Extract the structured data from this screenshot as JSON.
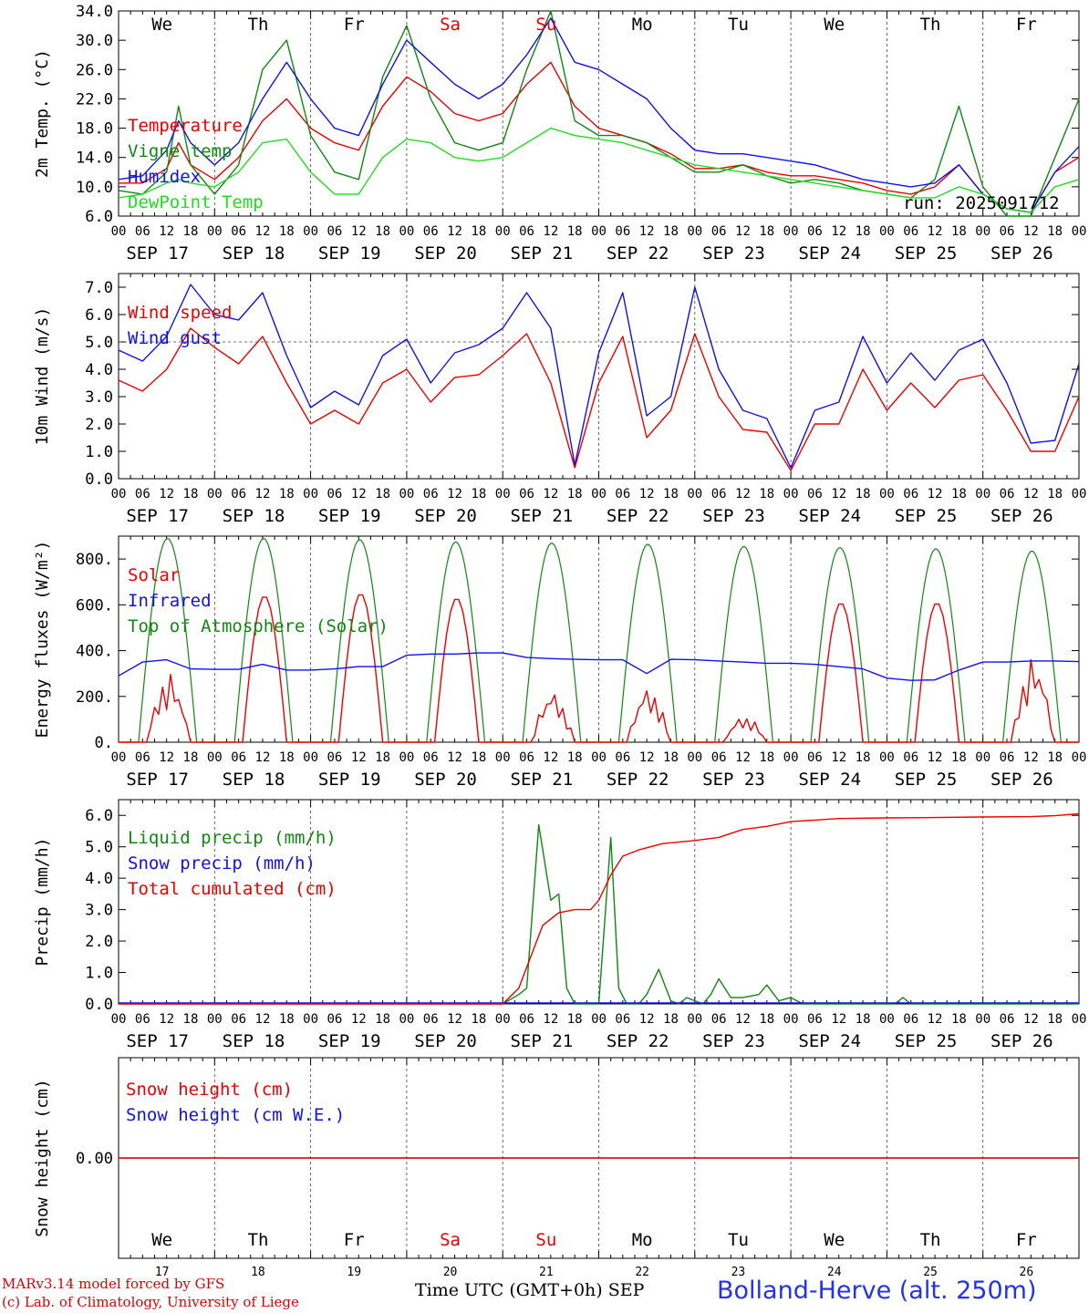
{
  "colors": {
    "red": "#ee0000",
    "green": "#118811",
    "blue": "#1111ee",
    "lime": "#22dd22",
    "black": "#000000",
    "grey": "#444444"
  },
  "day_names": [
    "We",
    "Th",
    "Fr",
    "Sa",
    "Su",
    "Mo",
    "Tu",
    "We",
    "Th",
    "Fr"
  ],
  "weekend_days": [
    3,
    4
  ],
  "date_labels": [
    "SEP 17",
    "SEP 18",
    "SEP 19",
    "SEP 20",
    "SEP 21",
    "SEP 22",
    "SEP 23",
    "SEP 24",
    "SEP 25",
    "SEP 26"
  ],
  "hour_labels": [
    "00",
    "06",
    "12",
    "18"
  ],
  "bottom_day_numbers": [
    "17",
    "18",
    "19",
    "20",
    "21",
    "22",
    "23",
    "24",
    "25",
    "26"
  ],
  "footer": {
    "model": "MARv3.14 model forced by GFS",
    "lab": "(c) Lab. of Climatology, University of Liege",
    "time_axis": "Time UTC (GMT+0h) SEP",
    "station": "Bolland-Herve (alt. 250m)"
  },
  "chart_data": [
    {
      "type": "line",
      "ylabel": "2m Temp. (°C)",
      "ylim": [
        6,
        34
      ],
      "yticks": [
        "6.0",
        "10.0",
        "14.0",
        "18.0",
        "22.0",
        "26.0",
        "30.0",
        "34.0"
      ],
      "annotation": "run: 2025091712",
      "series": [
        {
          "name": "Temperature",
          "color": "red",
          "x": [
            0,
            6,
            12,
            15,
            18,
            24,
            30,
            36,
            42,
            48,
            54,
            60,
            66,
            72,
            78,
            84,
            90,
            96,
            102,
            108,
            114,
            120,
            126,
            132,
            138,
            144,
            150,
            156,
            162,
            168,
            174,
            180,
            186,
            192,
            198,
            204,
            210,
            216,
            222,
            228,
            234,
            240
          ],
          "values": [
            10.5,
            10.5,
            12.5,
            16,
            13,
            11,
            14,
            19,
            22,
            18,
            16,
            15,
            21,
            25,
            23,
            20,
            19,
            20,
            24,
            27,
            21,
            18,
            17,
            16,
            14.5,
            12.5,
            12.5,
            13,
            12,
            11.5,
            11.5,
            11,
            10.5,
            9.5,
            9,
            10,
            13,
            9,
            7,
            6.5,
            12,
            14
          ]
        },
        {
          "name": "Vigne temp",
          "color": "green",
          "x": [
            0,
            6,
            12,
            15,
            18,
            24,
            30,
            36,
            42,
            48,
            54,
            60,
            66,
            72,
            78,
            84,
            90,
            96,
            102,
            108,
            114,
            120,
            126,
            132,
            138,
            144,
            150,
            156,
            162,
            168,
            174,
            180,
            186,
            192,
            198,
            204,
            210,
            216,
            222,
            228,
            234,
            240
          ],
          "values": [
            9.5,
            9,
            12,
            21,
            13,
            9,
            13,
            26,
            30,
            17,
            12,
            11,
            25,
            32,
            22,
            16,
            15,
            16,
            26,
            34,
            19,
            17,
            17,
            16,
            14,
            12,
            12,
            13,
            11.5,
            10.5,
            11,
            10.5,
            9.5,
            9,
            8.5,
            11,
            21,
            10,
            6,
            6,
            14,
            22
          ]
        },
        {
          "name": "Humidex",
          "color": "blue",
          "x": [
            0,
            6,
            12,
            15,
            18,
            24,
            30,
            36,
            42,
            48,
            54,
            60,
            66,
            72,
            78,
            84,
            90,
            96,
            102,
            108,
            114,
            120,
            126,
            132,
            138,
            144,
            150,
            156,
            162,
            168,
            174,
            180,
            186,
            192,
            198,
            204,
            210,
            216,
            222,
            228,
            234,
            240
          ],
          "values": [
            11,
            11.5,
            15,
            19,
            16,
            13,
            16,
            22,
            27,
            22,
            18,
            17,
            24,
            30,
            27,
            24,
            22,
            24,
            28,
            33,
            27,
            26,
            24,
            22,
            18,
            15,
            14.5,
            14.5,
            14,
            13.5,
            13,
            12,
            11,
            10.5,
            10,
            10.5,
            13,
            9,
            7,
            6.5,
            12,
            15.5
          ]
        },
        {
          "name": "DewPoint Temp",
          "color": "lime",
          "x": [
            0,
            6,
            12,
            15,
            18,
            24,
            30,
            36,
            42,
            48,
            54,
            60,
            66,
            72,
            78,
            84,
            90,
            96,
            102,
            108,
            114,
            120,
            126,
            132,
            138,
            144,
            150,
            156,
            162,
            168,
            174,
            180,
            186,
            192,
            198,
            204,
            210,
            216,
            222,
            228,
            234,
            240
          ],
          "values": [
            8.5,
            9,
            10.5,
            11,
            10.5,
            10,
            12,
            16,
            16.5,
            12,
            9,
            9,
            14,
            16.5,
            16,
            14,
            13.5,
            14,
            16,
            18,
            17,
            16.5,
            16,
            15,
            14,
            13,
            12.5,
            12,
            11.5,
            11,
            10.5,
            10,
            9.5,
            9,
            8.5,
            8.5,
            10,
            9,
            7,
            6.5,
            10,
            11
          ]
        }
      ]
    },
    {
      "type": "line",
      "ylabel": "10m Wind (m/s)",
      "ylim": [
        0,
        7.5
      ],
      "yticks": [
        "0.0",
        "1.0",
        "2.0",
        "3.0",
        "4.0",
        "5.0",
        "6.0",
        "7.0"
      ],
      "reference_line": 5.0,
      "series": [
        {
          "name": "Wind speed",
          "color": "red",
          "x": [
            0,
            6,
            12,
            18,
            24,
            30,
            36,
            42,
            48,
            54,
            60,
            66,
            72,
            78,
            84,
            90,
            96,
            102,
            108,
            114,
            120,
            126,
            132,
            138,
            144,
            150,
            156,
            162,
            168,
            174,
            180,
            186,
            192,
            198,
            204,
            210,
            216,
            222,
            228,
            234,
            240
          ],
          "values": [
            3.6,
            3.2,
            4,
            5.5,
            4.8,
            4.2,
            5.2,
            3.5,
            2,
            2.5,
            2,
            3.5,
            4,
            2.8,
            3.7,
            3.8,
            4.5,
            5.3,
            3.5,
            0.4,
            3.5,
            5.2,
            1.5,
            2.5,
            5.3,
            3,
            1.8,
            1.7,
            0.3,
            2,
            2,
            4,
            2.5,
            3.5,
            2.6,
            3.6,
            3.8,
            2.5,
            1,
            1,
            3
          ]
        },
        {
          "name": "Wind gust",
          "color": "blue",
          "x": [
            0,
            6,
            12,
            18,
            24,
            30,
            36,
            42,
            48,
            54,
            60,
            66,
            72,
            78,
            84,
            90,
            96,
            102,
            108,
            114,
            120,
            126,
            132,
            138,
            144,
            150,
            156,
            162,
            168,
            174,
            180,
            186,
            192,
            198,
            204,
            210,
            216,
            222,
            228,
            234,
            240
          ],
          "values": [
            4.7,
            4.3,
            5.2,
            7.1,
            6,
            5.8,
            6.8,
            4.5,
            2.6,
            3.2,
            2.7,
            4.5,
            5.1,
            3.5,
            4.6,
            4.9,
            5.5,
            6.8,
            5.5,
            0.5,
            4.6,
            6.8,
            2.3,
            3,
            7,
            4,
            2.5,
            2.2,
            0.4,
            2.5,
            2.8,
            5.2,
            3.5,
            4.6,
            3.6,
            4.7,
            5.1,
            3.5,
            1.3,
            1.4,
            4.2
          ]
        }
      ]
    },
    {
      "type": "line",
      "ylabel": "Energy fluxes (W/m²)",
      "ylim": [
        0,
        900
      ],
      "yticks": [
        "0.",
        "200.",
        "400.",
        "600.",
        "800."
      ],
      "series": [
        {
          "name": "Solar",
          "color": "red",
          "peaks": [
            230,
            640,
            650,
            630,
            170,
            185,
            90,
            610,
            610,
            280
          ]
        },
        {
          "name": "Infrared",
          "color": "blue",
          "x": [
            0,
            6,
            12,
            18,
            24,
            30,
            36,
            42,
            48,
            54,
            60,
            66,
            72,
            78,
            84,
            90,
            96,
            102,
            108,
            114,
            120,
            126,
            132,
            138,
            144,
            150,
            156,
            162,
            168,
            174,
            180,
            186,
            192,
            198,
            204,
            210,
            216,
            222,
            228,
            234,
            240
          ],
          "values": [
            290,
            350,
            360,
            320,
            318,
            318,
            340,
            315,
            315,
            320,
            330,
            330,
            380,
            385,
            385,
            390,
            390,
            370,
            365,
            362,
            360,
            360,
            300,
            362,
            360,
            355,
            350,
            345,
            345,
            340,
            330,
            320,
            280,
            270,
            272,
            315,
            350,
            350,
            355,
            355,
            352
          ]
        },
        {
          "name": "Top of Atmosphere (Solar)",
          "color": "green",
          "peaks": [
            890,
            890,
            885,
            875,
            870,
            865,
            855,
            850,
            845,
            835
          ]
        }
      ]
    },
    {
      "type": "line",
      "ylabel": "Precip (mm/h)",
      "ylim": [
        0,
        6.5
      ],
      "yticks": [
        "0.0",
        "1.0",
        "2.0",
        "3.0",
        "4.0",
        "5.0",
        "6.0"
      ],
      "series": [
        {
          "name": "Liquid precip (mm/h)",
          "color": "green",
          "x": [
            0,
            96,
            100,
            102,
            105,
            108,
            110,
            112,
            114,
            116,
            118,
            120,
            123,
            125,
            127,
            130,
            132,
            135,
            138,
            140,
            142,
            144,
            146,
            148,
            150,
            153,
            156,
            160,
            162,
            165,
            168,
            171,
            174,
            177,
            180,
            183,
            186,
            188,
            190,
            192,
            194,
            196,
            198,
            240
          ],
          "values": [
            0,
            0,
            0.3,
            0.5,
            5.7,
            3.3,
            3.5,
            0.5,
            0,
            0,
            0,
            0,
            5.3,
            0.5,
            0,
            0,
            0.3,
            1.1,
            0.1,
            0,
            0.2,
            0.1,
            0,
            0.3,
            0.8,
            0.2,
            0.2,
            0.3,
            0.6,
            0.1,
            0.2,
            0,
            0,
            0,
            0,
            0,
            0,
            0,
            0,
            0,
            0,
            0.2,
            0,
            0
          ]
        },
        {
          "name": "Snow precip (mm/h)",
          "color": "blue",
          "x": [
            0,
            240
          ],
          "values": [
            0,
            0
          ]
        },
        {
          "name": "Total cumulated (cm)",
          "color": "red",
          "x": [
            0,
            96,
            100,
            103,
            106,
            110,
            114,
            118,
            120,
            123,
            126,
            130,
            136,
            144,
            150,
            156,
            162,
            168,
            174,
            180,
            192,
            204,
            216,
            228,
            234,
            240
          ],
          "values": [
            0,
            0,
            0.5,
            1.5,
            2.5,
            2.9,
            3,
            3,
            3.3,
            4.1,
            4.7,
            4.9,
            5.1,
            5.2,
            5.3,
            5.55,
            5.65,
            5.8,
            5.85,
            5.9,
            5.92,
            5.93,
            5.95,
            5.96,
            5.99,
            6.05
          ]
        }
      ]
    },
    {
      "type": "line",
      "ylabel": "Snow height (cm)",
      "yticks": [
        "0.00"
      ],
      "series": [
        {
          "name": "Snow height (cm)",
          "color": "red",
          "x": [
            0,
            240
          ],
          "values": [
            0,
            0
          ]
        },
        {
          "name": "Snow height (cm W.E.)",
          "color": "blue",
          "x": [
            0,
            240
          ],
          "values": [
            0,
            0
          ]
        }
      ]
    }
  ]
}
